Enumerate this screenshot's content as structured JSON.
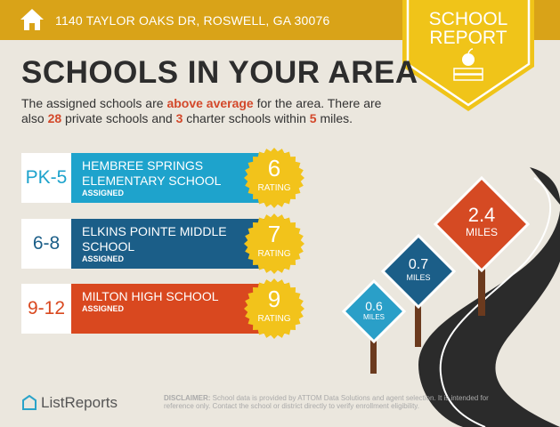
{
  "header": {
    "address": "1140 TAYLOR OAKS DR, ROSWELL, GA 30076",
    "badge_line1": "SCHOOL",
    "badge_line2": "REPORT"
  },
  "title": "SCHOOLS IN YOUR AREA",
  "intro": {
    "p1": "The assigned schools are ",
    "highlight1": "above average",
    "p2": " for the area. There are also ",
    "private_count": "28",
    "p3": " private schools and ",
    "charter_count": "3",
    "p4": " charter schools within ",
    "miles": "5",
    "p5": " miles."
  },
  "schools": [
    {
      "grades": "PK-5",
      "name": "HEMBREE SPRINGS ELEMENTARY SCHOOL",
      "status": "ASSIGNED",
      "rating": "6",
      "rating_label": "RATING",
      "color": "#1ea3cc"
    },
    {
      "grades": "6-8",
      "name": "ELKINS POINTE MIDDLE SCHOOL",
      "status": "ASSIGNED",
      "rating": "7",
      "rating_label": "RATING",
      "color": "#1b5e88"
    },
    {
      "grades": "9-12",
      "name": "MILTON HIGH SCHOOL",
      "status": "ASSIGNED",
      "rating": "9",
      "rating_label": "RATING",
      "color": "#d9481f"
    }
  ],
  "signs": [
    {
      "distance": "2.4",
      "unit": "MILES",
      "color": "#d54a23"
    },
    {
      "distance": "0.7",
      "unit": "MILES",
      "color": "#1b5e88"
    },
    {
      "distance": "0.6",
      "unit": "MILES",
      "color": "#2a9fc8"
    }
  ],
  "footer": {
    "logo": "ListReports",
    "disclaimer_label": "DISCLAIMER:",
    "disclaimer": " School data is provided by ATTOM Data Solutions and agent selection. It is intended for reference only. Contact the school or district directly to verify enrollment eligibility."
  }
}
